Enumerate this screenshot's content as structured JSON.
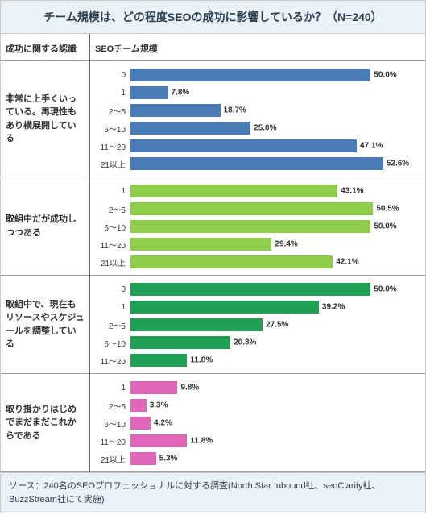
{
  "title": "チーム規模は、どの程度SEOの成功に影響しているか？（N=240）",
  "left_header": "成功に関する認識",
  "right_header": "SEOチーム規模",
  "footer": "ソース：240名のSEOプロフェッショナルに対する調査(North Star Inbound社、seoClarity社、BuzzStream社にて実施)",
  "max_value": 60,
  "colors": {
    "title_bg": "#eaf2f8",
    "title_text": "#2c3e50",
    "border": "#999999",
    "text": "#333333",
    "value_text": "#333333",
    "footer_bg": "#eaf2f8"
  },
  "groups": [
    {
      "label": "非常に上手くいっている。再現性もあり横展開している",
      "bar_color": "#4a7db8",
      "bars": [
        {
          "category": "0",
          "value": 50.0
        },
        {
          "category": "1",
          "value": 7.8
        },
        {
          "category": "2～5",
          "value": 18.7
        },
        {
          "category": "6～10",
          "value": 25.0
        },
        {
          "category": "11～20",
          "value": 47.1
        },
        {
          "category": "21以上",
          "value": 52.6
        }
      ]
    },
    {
      "label": "取組中だが成功しつつある",
      "bar_color": "#8fce4a",
      "bars": [
        {
          "category": "1",
          "value": 43.1
        },
        {
          "category": "2～5",
          "value": 50.5
        },
        {
          "category": "6～10",
          "value": 50.0
        },
        {
          "category": "11～20",
          "value": 29.4
        },
        {
          "category": "21以上",
          "value": 42.1
        }
      ]
    },
    {
      "label": "取組中で、現在もリソースやスケジュールを調整している",
      "bar_color": "#1fa055",
      "bars": [
        {
          "category": "0",
          "value": 50.0
        },
        {
          "category": "1",
          "value": 39.2
        },
        {
          "category": "2～5",
          "value": 27.5
        },
        {
          "category": "6～10",
          "value": 20.8
        },
        {
          "category": "11～20",
          "value": 11.8
        }
      ]
    },
    {
      "label": "取り掛かりはじめでまだまだこれからである",
      "bar_color": "#e066b8",
      "bars": [
        {
          "category": "1",
          "value": 9.8
        },
        {
          "category": "2～5",
          "value": 3.3
        },
        {
          "category": "6～10",
          "value": 4.2
        },
        {
          "category": "11～20",
          "value": 11.8
        },
        {
          "category": "21以上",
          "value": 5.3
        }
      ]
    }
  ]
}
